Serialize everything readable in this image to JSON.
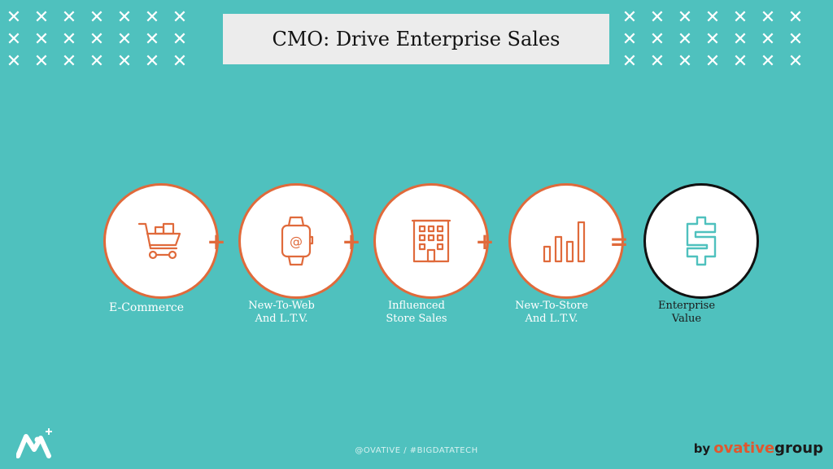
{
  "header": {
    "title": "CMO: Drive Enterprise Sales"
  },
  "decor": {
    "x_glyph": "✕",
    "rows": 3,
    "cols": 7
  },
  "flow": {
    "steps": [
      {
        "label_lines": [
          "E-Commerce"
        ],
        "icon": "shopping-cart-icon"
      },
      {
        "label_lines": [
          "New-To-Web",
          "And L.T.V."
        ],
        "icon": "smartwatch-icon",
        "icon_text": "@"
      },
      {
        "label_lines": [
          "Influenced",
          "Store Sales"
        ],
        "icon": "building-icon"
      },
      {
        "label_lines": [
          "New-To-Store",
          "And L.T.V."
        ],
        "icon": "bar-chart-icon"
      }
    ],
    "result": {
      "label_lines": [
        "Enterprise",
        "Value"
      ],
      "icon": "dollar-sign-icon"
    },
    "operators": [
      "+",
      "+",
      "+",
      "="
    ]
  },
  "footer": {
    "text": "@OVATIVE / #BIGDATATECH"
  },
  "brand": {
    "by": "by",
    "name_part1": "ovative",
    "name_part2": "group"
  },
  "colors": {
    "background": "#4fc1be",
    "accent": "#e06a3b",
    "result_icon": "#4fc1be",
    "title_box": "#ececec"
  }
}
